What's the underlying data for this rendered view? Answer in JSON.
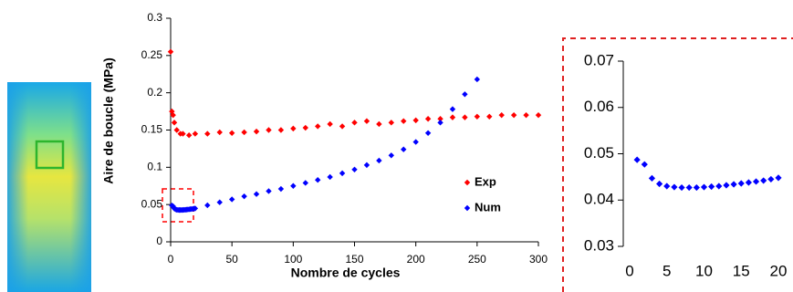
{
  "chart_data": [
    {
      "type": "scatter",
      "x_label": "Nombre de cycles",
      "y_label": "Aire de boucle (MPa)",
      "xlim": [
        0,
        300
      ],
      "xticks": [
        0,
        50,
        100,
        150,
        200,
        250,
        300
      ],
      "ylim": [
        0,
        0.3
      ],
      "yticks": [
        0,
        0.05,
        0.1,
        0.15,
        0.2,
        0.25,
        0.3
      ],
      "series": [
        {
          "name": "Exp",
          "color": "#ff0000",
          "x": [
            0,
            1,
            2,
            3,
            5,
            8,
            10,
            15,
            20,
            30,
            40,
            50,
            60,
            70,
            80,
            90,
            100,
            110,
            120,
            130,
            140,
            150,
            160,
            170,
            180,
            190,
            200,
            210,
            220,
            230,
            240,
            250,
            260,
            270,
            280,
            290,
            300
          ],
          "values": [
            0.255,
            0.175,
            0.17,
            0.16,
            0.15,
            0.145,
            0.145,
            0.143,
            0.145,
            0.145,
            0.147,
            0.146,
            0.147,
            0.148,
            0.15,
            0.15,
            0.152,
            0.153,
            0.155,
            0.158,
            0.155,
            0.16,
            0.162,
            0.158,
            0.16,
            0.162,
            0.163,
            0.165,
            0.165,
            0.167,
            0.167,
            0.168,
            0.168,
            0.17,
            0.17,
            0.17,
            0.17
          ]
        },
        {
          "name": "Num",
          "color": "#0000ff",
          "x": [
            1,
            2,
            3,
            4,
            5,
            6,
            7,
            8,
            9,
            10,
            11,
            12,
            13,
            14,
            15,
            16,
            17,
            18,
            19,
            20,
            30,
            40,
            50,
            60,
            70,
            80,
            90,
            100,
            110,
            120,
            130,
            140,
            150,
            160,
            170,
            180,
            190,
            200,
            210,
            220,
            230,
            240,
            250
          ],
          "values": [
            0.0487,
            0.0477,
            0.0447,
            0.0435,
            0.043,
            0.0428,
            0.0427,
            0.0427,
            0.0427,
            0.0428,
            0.0429,
            0.043,
            0.0432,
            0.0434,
            0.0436,
            0.0438,
            0.044,
            0.0442,
            0.0445,
            0.0448,
            0.049,
            0.053,
            0.057,
            0.061,
            0.064,
            0.068,
            0.071,
            0.075,
            0.079,
            0.083,
            0.087,
            0.092,
            0.097,
            0.103,
            0.109,
            0.116,
            0.124,
            0.134,
            0.146,
            0.16,
            0.178,
            0.198,
            0.218
          ]
        }
      ]
    },
    {
      "type": "scatter",
      "xlim": [
        0,
        20
      ],
      "xticks": [
        0,
        5,
        10,
        15,
        20
      ],
      "ylim": [
        0.03,
        0.07
      ],
      "yticks": [
        0.03,
        0.04,
        0.05,
        0.06,
        0.07
      ],
      "series": [
        {
          "color": "#0000ff",
          "x": [
            1,
            2,
            3,
            4,
            5,
            6,
            7,
            8,
            9,
            10,
            11,
            12,
            13,
            14,
            15,
            16,
            17,
            18,
            19,
            20
          ],
          "values": [
            0.0487,
            0.0477,
            0.0447,
            0.0435,
            0.043,
            0.0428,
            0.0427,
            0.0427,
            0.0427,
            0.0428,
            0.0429,
            0.043,
            0.0432,
            0.0434,
            0.0436,
            0.0438,
            0.044,
            0.0442,
            0.0445,
            0.0448
          ]
        }
      ]
    }
  ]
}
